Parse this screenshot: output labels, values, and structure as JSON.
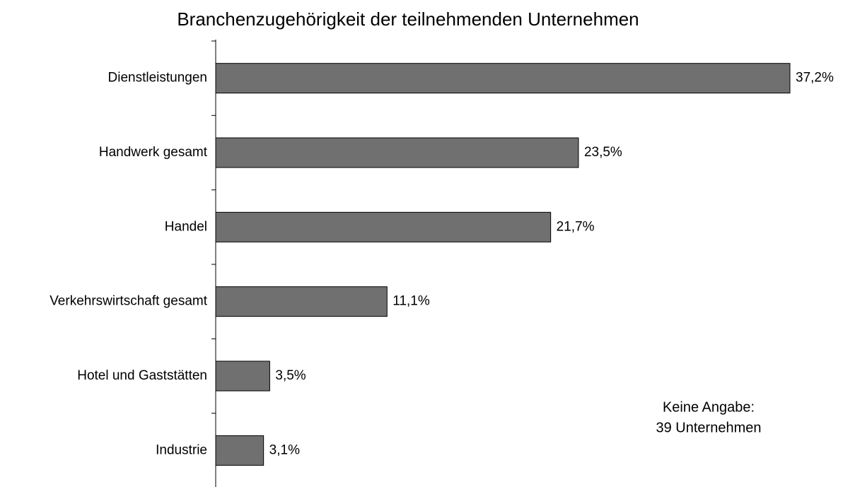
{
  "chart_data": {
    "type": "bar",
    "orientation": "horizontal",
    "title": "Branchenzugehörigkeit der teilnehmenden Unternehmen",
    "categories": [
      "Dienstleistungen",
      "Handwerk gesamt",
      "Handel",
      "Verkehrswirtschaft gesamt",
      "Hotel und Gaststätten",
      "Industrie"
    ],
    "values": [
      37.2,
      23.5,
      21.7,
      11.1,
      3.5,
      3.1
    ],
    "value_labels": [
      "37,2%",
      "23,5%",
      "21,7%",
      "11,1%",
      "3,5%",
      "3,1%"
    ],
    "color": "#707070",
    "annotation": [
      "Keine Angabe:",
      "39 Unternehmen"
    ]
  }
}
